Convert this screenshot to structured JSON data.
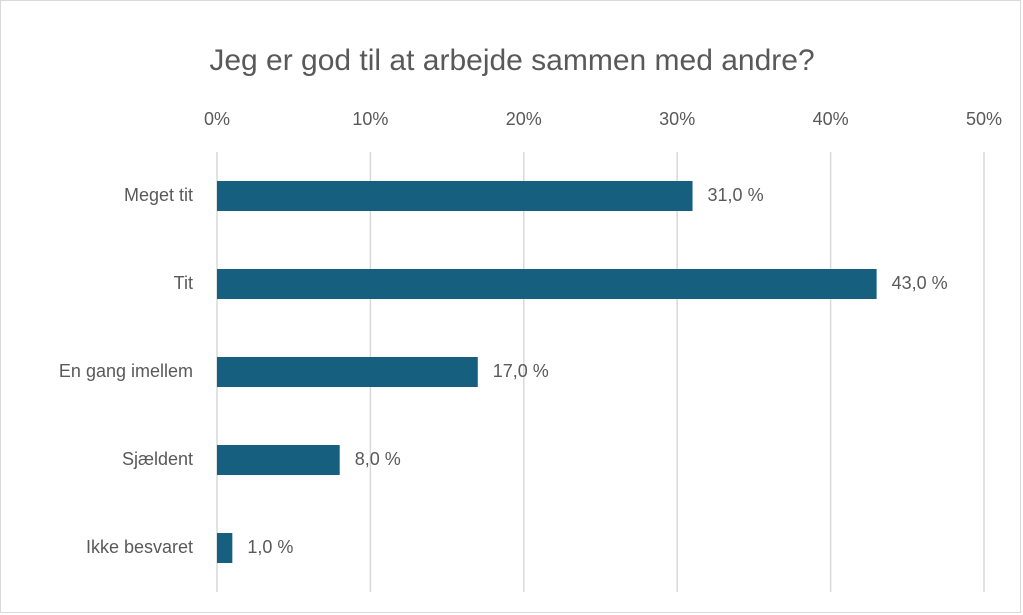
{
  "chart_data": {
    "type": "bar",
    "orientation": "horizontal",
    "title": "Jeg er god til at arbejde sammen med andre?",
    "categories": [
      "Meget tit",
      "Tit",
      "En gang imellem",
      "Sjældent",
      "Ikke besvaret"
    ],
    "values": [
      31,
      43,
      17,
      8,
      1
    ],
    "value_labels": [
      "31,0 %",
      "43,0 %",
      "17,0 %",
      "8,0 %",
      "1,0 %"
    ],
    "color": "#175f7f",
    "xlim": [
      0,
      50
    ],
    "xticks": [
      {
        "value": 0,
        "label": "0%"
      },
      {
        "value": 10,
        "label": "10%"
      },
      {
        "value": 20,
        "label": "20%"
      },
      {
        "value": 30,
        "label": "30%"
      },
      {
        "value": 40,
        "label": "40%"
      },
      {
        "value": 50,
        "label": "50%"
      }
    ],
    "grid": true
  }
}
